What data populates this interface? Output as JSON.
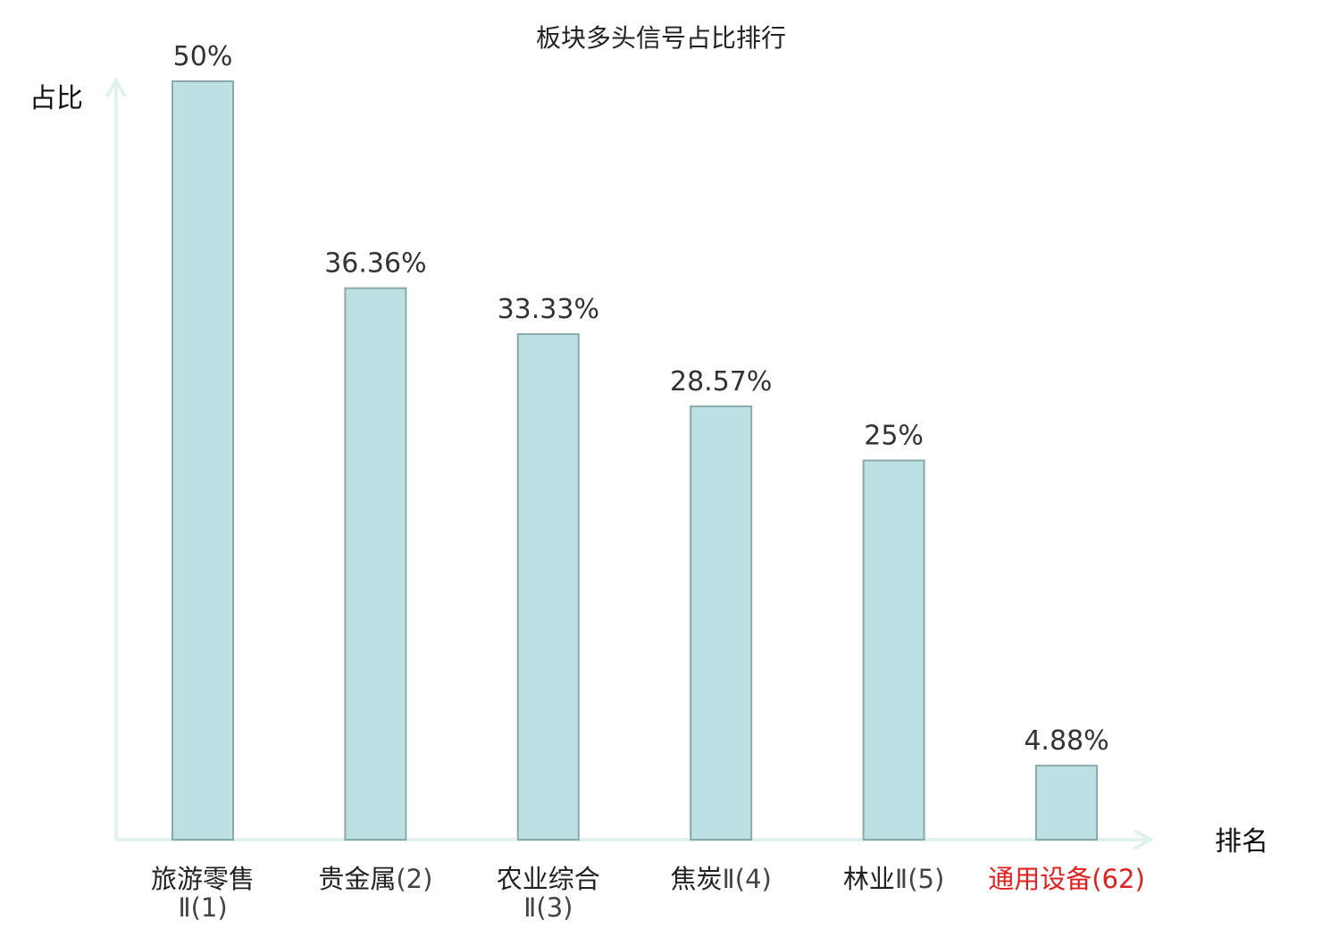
{
  "chart_data": {
    "type": "bar",
    "title": "板块多头信号占比排行",
    "ylabel": "占比",
    "xlabel": "排名",
    "ylim": [
      0,
      50
    ],
    "grid": false,
    "categories": [
      {
        "name": "旅游零售",
        "rank": "Ⅱ(1)",
        "highlight": false
      },
      {
        "name": "贵金属",
        "rank": "(2)",
        "highlight": false
      },
      {
        "name": "农业综合",
        "rank": "Ⅱ(3)",
        "highlight": false
      },
      {
        "name": "焦炭",
        "rank": "Ⅱ(4)",
        "highlight": false
      },
      {
        "name": "林业",
        "rank": "Ⅱ(5)",
        "highlight": false
      },
      {
        "name": "通用设备",
        "rank": "(62)",
        "highlight": true
      }
    ],
    "values": [
      50,
      36.36,
      33.33,
      28.57,
      25,
      4.88
    ],
    "value_labels": [
      "50%",
      "36.36%",
      "33.33%",
      "28.57%",
      "25%",
      "4.88%"
    ],
    "colors": {
      "bar_fill": "#bde0e3",
      "bar_stroke": "#8aa9ab",
      "axis": "#e0f1ee",
      "category_text": "#222222",
      "rank_text": "#444444",
      "highlight": "#e02020"
    }
  }
}
